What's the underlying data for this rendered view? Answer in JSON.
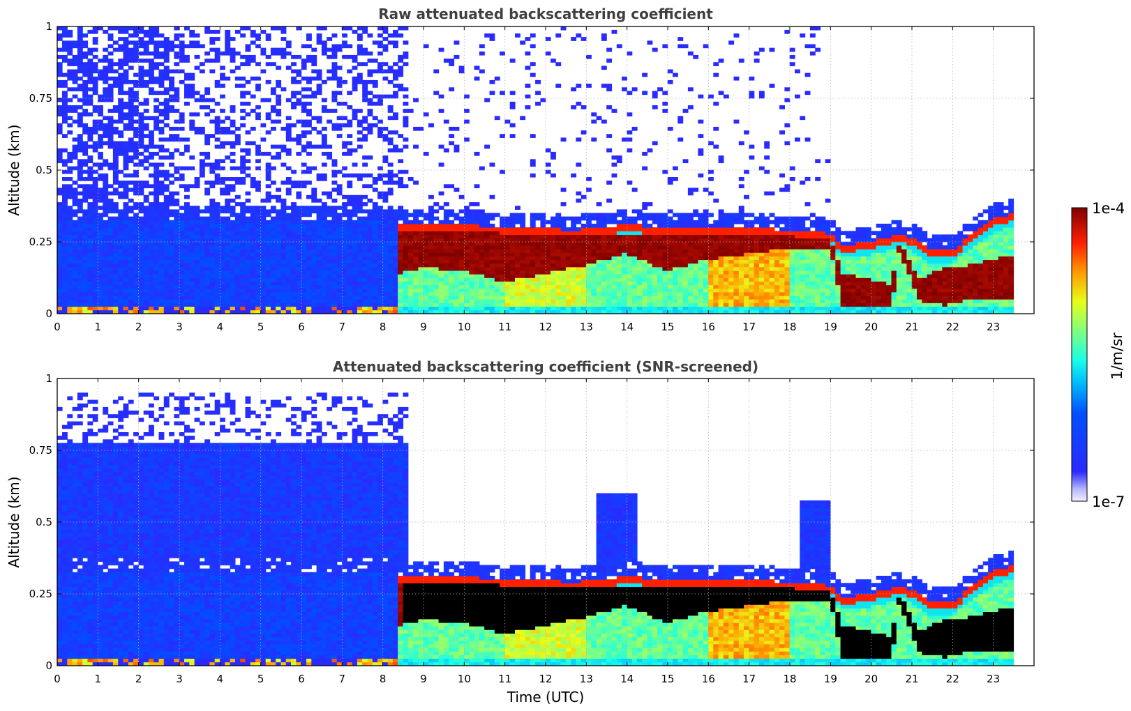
{
  "chart_data": [
    {
      "type": "heatmap",
      "title": "Raw attenuated backscattering coefficient",
      "xlabel": "",
      "ylabel": "Altitude (km)",
      "xlim": [
        0,
        24
      ],
      "ylim": [
        0,
        1
      ],
      "x_ticks": [
        "0",
        "1",
        "2",
        "3",
        "4",
        "5",
        "6",
        "7",
        "8",
        "9",
        "10",
        "11",
        "12",
        "13",
        "14",
        "15",
        "16",
        "17",
        "18",
        "19",
        "20",
        "21",
        "22",
        "23"
      ],
      "y_ticks": [
        "0",
        "0.25",
        "0.5",
        "0.75",
        "1"
      ],
      "grid": true,
      "data_end_hour": 23.5,
      "screened": false,
      "layer_top_km": [
        [
          0,
          0.32
        ],
        [
          1,
          0.32
        ],
        [
          2,
          0.32
        ],
        [
          3,
          0.32
        ],
        [
          4,
          0.32
        ],
        [
          5,
          0.32
        ],
        [
          6,
          0.32
        ],
        [
          7,
          0.32
        ],
        [
          8,
          0.33
        ],
        [
          8.4,
          0.31
        ],
        [
          9,
          0.31
        ],
        [
          10,
          0.31
        ],
        [
          11,
          0.3
        ],
        [
          12,
          0.3
        ],
        [
          12.7,
          0.29
        ],
        [
          13.2,
          0.3
        ],
        [
          14,
          0.31
        ],
        [
          15,
          0.3
        ],
        [
          16,
          0.3
        ],
        [
          17,
          0.3
        ],
        [
          18,
          0.29
        ],
        [
          19,
          0.28
        ],
        [
          19.3,
          0.24
        ],
        [
          20,
          0.25
        ],
        [
          20.8,
          0.28
        ],
        [
          21.5,
          0.22
        ],
        [
          22,
          0.22
        ],
        [
          22.5,
          0.28
        ],
        [
          23,
          0.33
        ],
        [
          23.5,
          0.35
        ]
      ],
      "dense_layer_km": [
        [
          8.4,
          0.14,
          0.29
        ],
        [
          9,
          0.16,
          0.29
        ],
        [
          10,
          0.15,
          0.29
        ],
        [
          11,
          0.11,
          0.28
        ],
        [
          12,
          0.14,
          0.28
        ],
        [
          13,
          0.17,
          0.27
        ],
        [
          14,
          0.21,
          0.28
        ],
        [
          15,
          0.15,
          0.28
        ],
        [
          16,
          0.19,
          0.27
        ],
        [
          17,
          0.21,
          0.27
        ],
        [
          18,
          0.23,
          0.27
        ],
        [
          19,
          0.23,
          0.26
        ],
        [
          19.3,
          0.03,
          0.14
        ],
        [
          20,
          0.0,
          0.12
        ],
        [
          20.5,
          0.0,
          0.1
        ],
        [
          20.7,
          0.22,
          0.25
        ],
        [
          21.2,
          0.04,
          0.12
        ],
        [
          21.8,
          0.03,
          0.16
        ],
        [
          22.5,
          0.05,
          0.17
        ],
        [
          23.3,
          0.05,
          0.2
        ]
      ]
    },
    {
      "type": "heatmap",
      "title": "Attenuated backscattering coefficient (SNR-screened)",
      "xlabel": "Time (UTC)",
      "ylabel": "Altitude (km)",
      "xlim": [
        0,
        24
      ],
      "ylim": [
        0,
        1
      ],
      "x_ticks": [
        "0",
        "1",
        "2",
        "3",
        "4",
        "5",
        "6",
        "7",
        "8",
        "9",
        "10",
        "11",
        "12",
        "13",
        "14",
        "15",
        "16",
        "17",
        "18",
        "19",
        "20",
        "21",
        "22",
        "23"
      ],
      "y_ticks": [
        "0",
        "0.25",
        "0.5",
        "0.75",
        "1"
      ],
      "grid": true,
      "data_end_hour": 23.5,
      "screened": true,
      "saturated_color": "#000000"
    }
  ],
  "colorbar": {
    "label": "1/m/sr",
    "max_label": "1e-4",
    "min_label": "1e-7",
    "colormap": "jet",
    "low_end_color": "#e8e8ff",
    "high_end_color": "#7f0000"
  }
}
